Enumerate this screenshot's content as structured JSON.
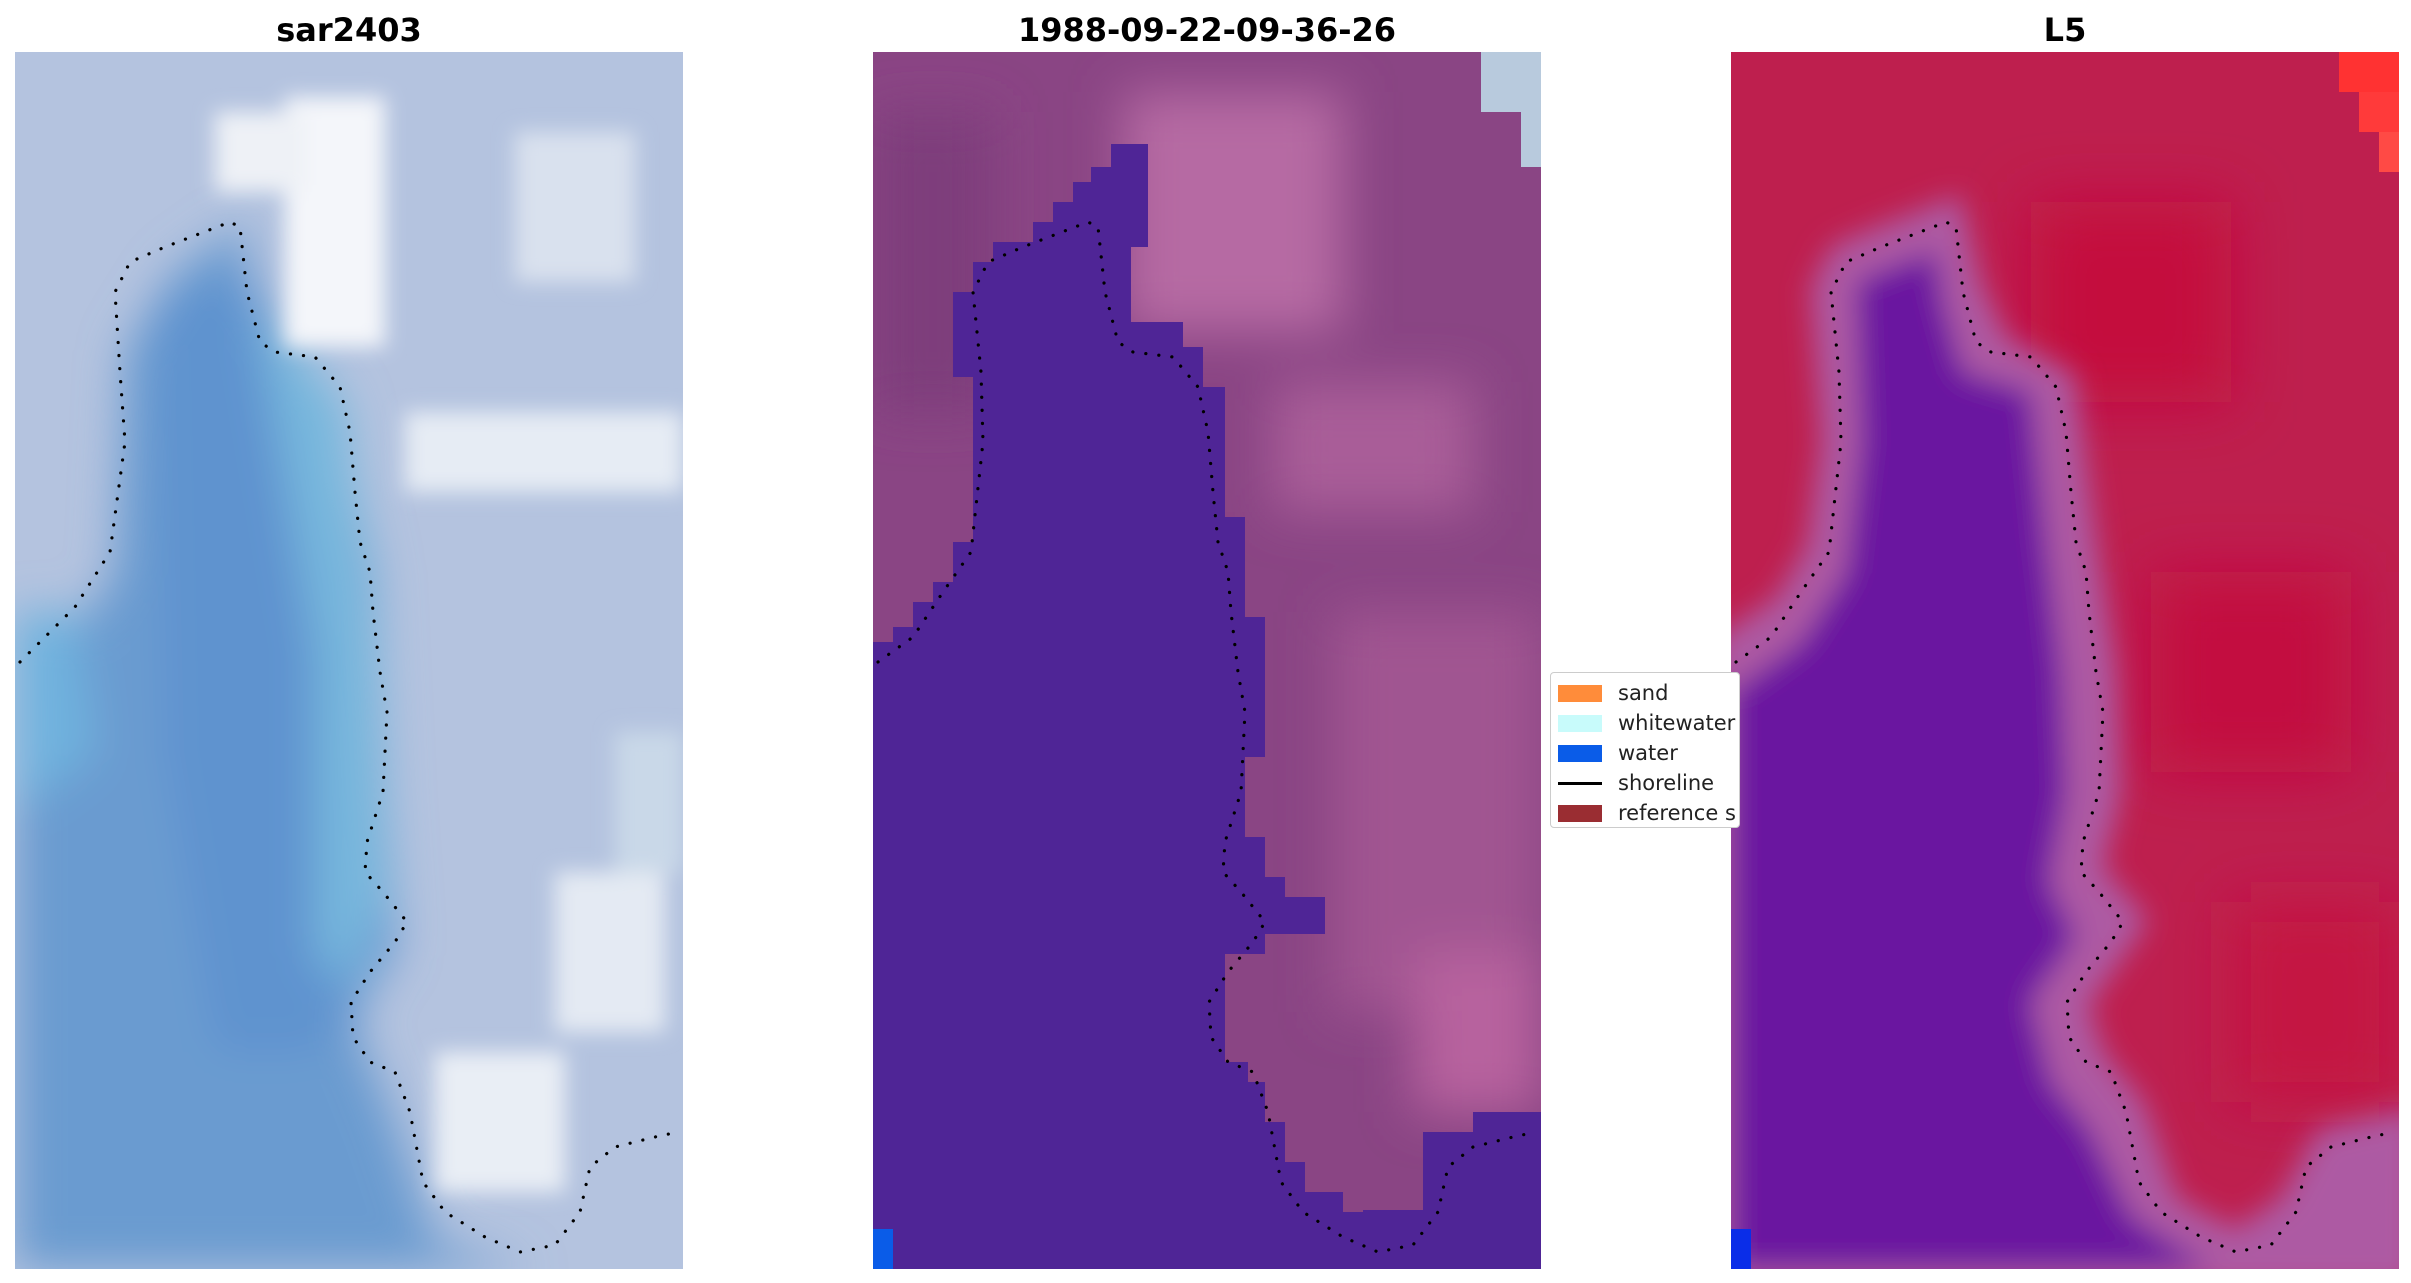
{
  "panels": [
    {
      "title": "sar2403"
    },
    {
      "title": "1988-09-22-09-36-26"
    },
    {
      "title": "L5"
    }
  ],
  "legend": {
    "items": [
      {
        "label": "sand",
        "color": "#ff8c3a",
        "kind": "patch"
      },
      {
        "label": "whitewater",
        "color": "#c8fbfb",
        "kind": "patch"
      },
      {
        "label": "water",
        "color": "#0a5ce8",
        "kind": "patch"
      },
      {
        "label": "shoreline",
        "color": "#000000",
        "kind": "line"
      },
      {
        "label": "reference s",
        "color": "#9a2d32",
        "kind": "patch"
      }
    ]
  },
  "colors": {
    "rgb_water": "#6b9bd0",
    "rgb_land": "#b9c8e2",
    "class_water": "#4f2596",
    "class_land": "#8c4583",
    "class_land_light": "#b55c9a",
    "index_water": "#6a17a0",
    "index_land": "#bd1a4c",
    "index_edge": "#a855a0",
    "shoreline": "#000000"
  }
}
